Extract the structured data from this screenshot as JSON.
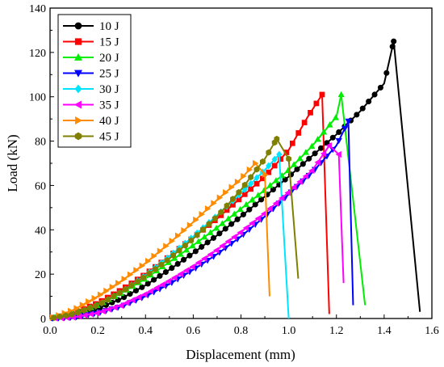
{
  "chart_data": {
    "type": "line",
    "title": "",
    "xlabel": "Displacement (mm)",
    "ylabel": "Load (kN)",
    "xlim": [
      0.0,
      1.6
    ],
    "ylim": [
      0,
      140
    ],
    "xticks": [
      "0.0",
      "0.2",
      "0.4",
      "0.6",
      "0.8",
      "1.0",
      "1.2",
      "1.4",
      "1.6"
    ],
    "yticks": [
      "0",
      "20",
      "40",
      "60",
      "80",
      "100",
      "120",
      "140"
    ],
    "grid": false,
    "legend_position": "top-left",
    "series": [
      {
        "name": "10 J",
        "color": "#000000",
        "marker": "circle",
        "points": [
          [
            0,
            0
          ],
          [
            0.1,
            1.5
          ],
          [
            0.2,
            4.5
          ],
          [
            0.3,
            9
          ],
          [
            0.4,
            15
          ],
          [
            0.5,
            22
          ],
          [
            0.6,
            29.5
          ],
          [
            0.7,
            37.5
          ],
          [
            0.8,
            46
          ],
          [
            0.9,
            55
          ],
          [
            1.0,
            64
          ],
          [
            1.1,
            73.5
          ],
          [
            1.2,
            83
          ],
          [
            1.3,
            93.5
          ],
          [
            1.4,
            106
          ],
          [
            1.44,
            125
          ],
          [
            1.55,
            3
          ]
        ]
      },
      {
        "name": "15 J",
        "color": "#ff0000",
        "marker": "square",
        "points": [
          [
            0,
            0
          ],
          [
            0.1,
            2.5
          ],
          [
            0.2,
            7
          ],
          [
            0.3,
            13
          ],
          [
            0.4,
            20
          ],
          [
            0.5,
            28
          ],
          [
            0.6,
            36.5
          ],
          [
            0.7,
            45
          ],
          [
            0.8,
            54.5
          ],
          [
            0.9,
            64
          ],
          [
            1.0,
            76
          ],
          [
            1.08,
            91
          ],
          [
            1.14,
            101
          ],
          [
            1.17,
            2
          ]
        ]
      },
      {
        "name": "20 J",
        "color": "#00ee00",
        "marker": "triangle-up",
        "points": [
          [
            0,
            0
          ],
          [
            0.1,
            2
          ],
          [
            0.2,
            6
          ],
          [
            0.3,
            11.5
          ],
          [
            0.4,
            18
          ],
          [
            0.5,
            25.5
          ],
          [
            0.6,
            33
          ],
          [
            0.7,
            41
          ],
          [
            0.8,
            49.5
          ],
          [
            0.9,
            58
          ],
          [
            1.0,
            67
          ],
          [
            1.1,
            78
          ],
          [
            1.2,
            91
          ],
          [
            1.22,
            101
          ],
          [
            1.32,
            6
          ]
        ]
      },
      {
        "name": "25 J",
        "color": "#0000ff",
        "marker": "triangle-down",
        "points": [
          [
            0,
            0
          ],
          [
            0.1,
            0.5
          ],
          [
            0.2,
            2.5
          ],
          [
            0.3,
            5.5
          ],
          [
            0.4,
            10
          ],
          [
            0.5,
            15.5
          ],
          [
            0.6,
            22
          ],
          [
            0.7,
            29
          ],
          [
            0.8,
            37
          ],
          [
            0.9,
            46
          ],
          [
            1.0,
            56
          ],
          [
            1.1,
            66
          ],
          [
            1.2,
            78
          ],
          [
            1.25,
            89
          ],
          [
            1.27,
            6
          ]
        ]
      },
      {
        "name": "30 J",
        "color": "#00e5ff",
        "marker": "diamond",
        "points": [
          [
            0,
            0
          ],
          [
            0.1,
            2
          ],
          [
            0.2,
            6
          ],
          [
            0.3,
            12
          ],
          [
            0.4,
            19.5
          ],
          [
            0.5,
            28
          ],
          [
            0.6,
            37
          ],
          [
            0.7,
            46.5
          ],
          [
            0.8,
            56.5
          ],
          [
            0.9,
            67
          ],
          [
            0.96,
            74
          ],
          [
            1.0,
            0
          ]
        ]
      },
      {
        "name": "35 J",
        "color": "#ff00ff",
        "marker": "triangle-left",
        "points": [
          [
            0,
            0
          ],
          [
            0.1,
            0.5
          ],
          [
            0.2,
            2.5
          ],
          [
            0.3,
            6
          ],
          [
            0.4,
            11
          ],
          [
            0.5,
            17
          ],
          [
            0.6,
            23.5
          ],
          [
            0.7,
            31
          ],
          [
            0.8,
            39
          ],
          [
            0.9,
            47.5
          ],
          [
            1.0,
            57
          ],
          [
            1.1,
            67
          ],
          [
            1.17,
            78
          ],
          [
            1.21,
            74
          ],
          [
            1.23,
            16
          ]
        ]
      },
      {
        "name": "40 J",
        "color": "#ff8c00",
        "marker": "triangle-right",
        "points": [
          [
            0,
            0
          ],
          [
            0.1,
            4
          ],
          [
            0.2,
            10
          ],
          [
            0.3,
            17
          ],
          [
            0.4,
            25
          ],
          [
            0.5,
            34
          ],
          [
            0.6,
            43.5
          ],
          [
            0.7,
            53.5
          ],
          [
            0.8,
            63
          ],
          [
            0.86,
            70
          ],
          [
            0.9,
            65
          ],
          [
            0.92,
            10
          ]
        ]
      },
      {
        "name": "45 J",
        "color": "#808000",
        "marker": "hexagon",
        "points": [
          [
            0,
            0
          ],
          [
            0.1,
            2
          ],
          [
            0.2,
            6
          ],
          [
            0.3,
            12
          ],
          [
            0.4,
            19
          ],
          [
            0.5,
            27
          ],
          [
            0.6,
            36
          ],
          [
            0.7,
            46
          ],
          [
            0.8,
            58
          ],
          [
            0.9,
            72
          ],
          [
            0.95,
            81
          ],
          [
            1.0,
            72
          ],
          [
            1.04,
            18
          ]
        ]
      }
    ]
  }
}
